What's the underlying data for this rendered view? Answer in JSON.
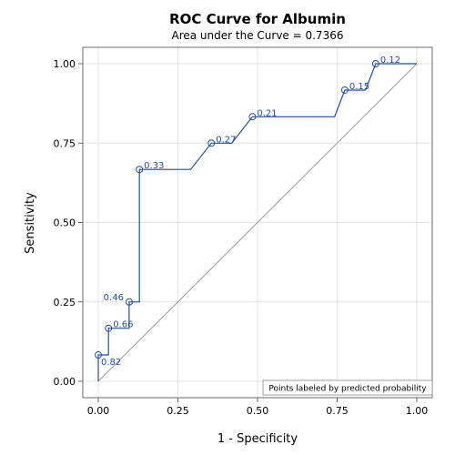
{
  "chart_data": {
    "type": "line",
    "title": "ROC Curve for Albumin",
    "subtitle": "Area under the Curve = 0.7366",
    "xlabel": "1 - Specificity",
    "ylabel": "Sensitivity",
    "xlim": [
      0,
      1
    ],
    "ylim": [
      0,
      1
    ],
    "xticks": [
      "0.00",
      "0.25",
      "0.50",
      "0.75",
      "1.00"
    ],
    "yticks": [
      "0.00",
      "0.25",
      "0.50",
      "0.75",
      "1.00"
    ],
    "grid": true,
    "diagonal_reference": true,
    "curve_color": "#1f4ea8",
    "reference_color": "#9a9a9a",
    "roc_path": [
      [
        0,
        0
      ],
      [
        0,
        0.083
      ],
      [
        0.032,
        0.083
      ],
      [
        0.032,
        0.167
      ],
      [
        0.097,
        0.167
      ],
      [
        0.097,
        0.25
      ],
      [
        0.129,
        0.25
      ],
      [
        0.129,
        0.667
      ],
      [
        0.29,
        0.667
      ],
      [
        0.355,
        0.75
      ],
      [
        0.419,
        0.75
      ],
      [
        0.484,
        0.833
      ],
      [
        0.742,
        0.833
      ],
      [
        0.774,
        0.917
      ],
      [
        0.839,
        0.917
      ],
      [
        0.871,
        1.0
      ],
      [
        1.0,
        1.0
      ]
    ],
    "labeled_points": [
      {
        "x": 0.0,
        "y": 0.083,
        "label": "0.82",
        "label_pos": "below-right"
      },
      {
        "x": 0.032,
        "y": 0.167,
        "label": "0.66",
        "label_pos": "right"
      },
      {
        "x": 0.097,
        "y": 0.25,
        "label": "0.46",
        "label_pos": "left"
      },
      {
        "x": 0.129,
        "y": 0.667,
        "label": "0.33",
        "label_pos": "right"
      },
      {
        "x": 0.355,
        "y": 0.75,
        "label": "0.27",
        "label_pos": "right"
      },
      {
        "x": 0.484,
        "y": 0.833,
        "label": "0.21",
        "label_pos": "right"
      },
      {
        "x": 0.774,
        "y": 0.917,
        "label": "0.15",
        "label_pos": "right"
      },
      {
        "x": 0.871,
        "y": 1.0,
        "label": "0.12",
        "label_pos": "right"
      }
    ],
    "legend_note": "Points labeled by predicted probability",
    "legend_position": "bottom-right"
  }
}
